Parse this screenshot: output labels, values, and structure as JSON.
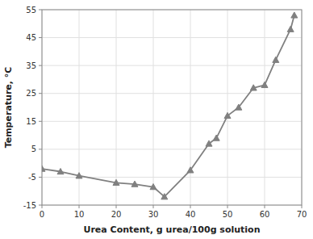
{
  "chart_data": {
    "type": "line",
    "x": [
      0,
      5,
      10,
      20,
      25,
      30,
      33,
      40,
      45,
      47,
      50,
      53,
      57,
      60,
      63,
      67,
      68
    ],
    "values": [
      -2,
      -3,
      -4.5,
      -7,
      -7.5,
      -8.5,
      -12,
      -2.5,
      7,
      9,
      17,
      20,
      27,
      28,
      37,
      48,
      53
    ],
    "xlabel": "Urea Content, g urea/100g solution",
    "ylabel": "Temperature, °C",
    "xlim": [
      0,
      70
    ],
    "ylim": [
      -15,
      55
    ],
    "xticks": [
      0,
      10,
      20,
      30,
      40,
      50,
      60,
      70
    ],
    "yticks": [
      -15,
      -5,
      5,
      15,
      25,
      35,
      45,
      55
    ],
    "color": "#808080",
    "marker": "triangle",
    "grid": true
  }
}
